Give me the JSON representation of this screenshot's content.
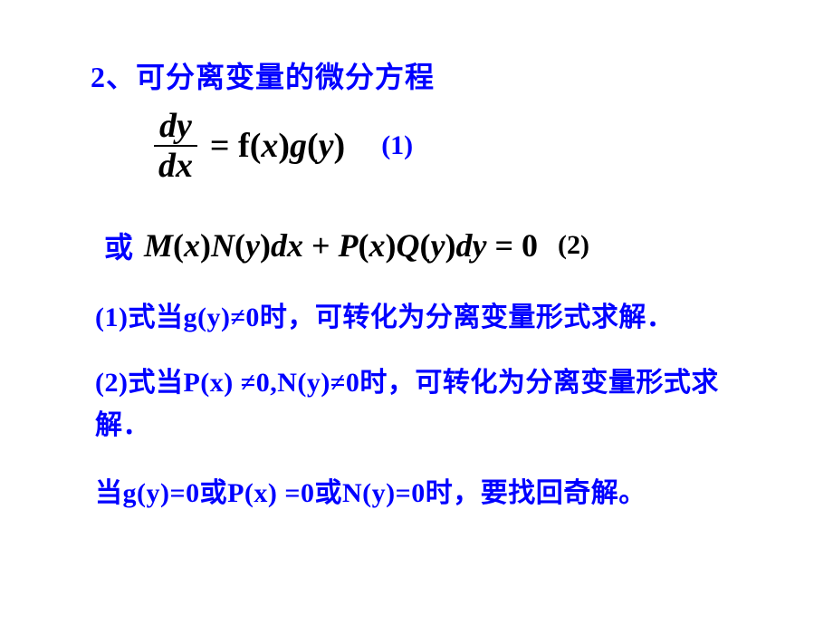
{
  "colors": {
    "accent": "#0000ff",
    "text": "#000000",
    "background": "#ffffff"
  },
  "fonts": {
    "cjk": "SimSun",
    "math": "Times New Roman",
    "heading_size": 32,
    "math_size": 38,
    "note_size": 30
  },
  "heading": "2、可分离变量的微分方程",
  "eq1": {
    "frac_num": "dy",
    "frac_den": "dx",
    "rhs_prefix": " = f",
    "rhs_paren1_open": "(",
    "rhs_x": "x",
    "rhs_paren1_close": ")",
    "rhs_g": "g",
    "rhs_paren2_open": "(",
    "rhs_y": "y",
    "rhs_paren2_close": ")",
    "label": "(1)"
  },
  "row2": {
    "or": "或",
    "eq_M": "M",
    "p_o": "(",
    "x": "x",
    "p_c": ")",
    "N": "N",
    "y": "y",
    "dx": "dx",
    "plus": " + ",
    "P": "P",
    "Q": "Q",
    "dy": "dy",
    "eqz": " = 0",
    "label": "(2)"
  },
  "note1": "(1)式当g(y)≠0时，可转化为分离变量形式求解．",
  "note2": "(2)式当P(x) ≠0,N(y)≠0时，可转化为分离变量形式求解．",
  "note3": "当g(y)=0或P(x) =0或N(y)=0时，要找回奇解。"
}
